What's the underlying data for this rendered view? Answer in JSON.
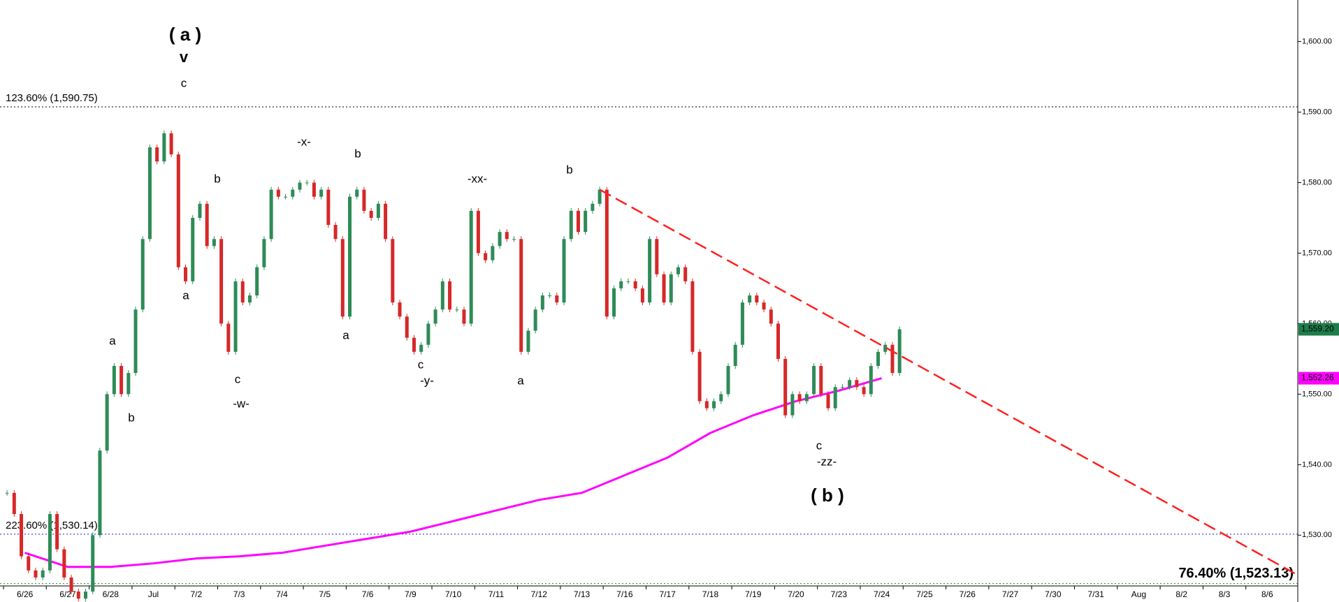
{
  "chart_data": {
    "type": "candlestick",
    "categories": [
      "6/26",
      "6/27",
      "6/28",
      "Jul",
      "7/2",
      "7/3",
      "7/4",
      "7/5",
      "7/6",
      "7/9",
      "7/10",
      "7/11",
      "7/12",
      "7/13",
      "7/16",
      "7/17",
      "7/18",
      "7/19",
      "7/20",
      "7/23",
      "7/24",
      "7/25",
      "7/26",
      "7/27",
      "7/30",
      "7/31",
      "Aug",
      "8/2",
      "8/3",
      "8/6"
    ],
    "ylim": [
      1522.8,
      1605.9
    ],
    "yticks": [
      {
        "value": 1530,
        "label": "1,530.00"
      },
      {
        "value": 1540,
        "label": "1,540.00"
      },
      {
        "value": 1550,
        "label": "1,550.00"
      },
      {
        "value": 1560,
        "label": "1,560.00"
      },
      {
        "value": 1570,
        "label": "1,570.00"
      },
      {
        "value": 1580,
        "label": "1,580.00"
      },
      {
        "value": 1590,
        "label": "1,590.00"
      },
      {
        "value": 1600,
        "label": "1,600.00"
      }
    ],
    "series": [
      {
        "name": "Price",
        "up_color": "#2e8b57",
        "down_color": "#d62828",
        "color": "#1e7d4a",
        "last_value_label": "1,559.20",
        "values": [
          [
            1536,
            1533,
            1527,
            1525,
            1524,
            1525
          ],
          [
            1533,
            1528,
            1524,
            1522,
            1521,
            1522
          ],
          [
            1530,
            1542,
            1550,
            1554,
            1550,
            1553
          ],
          [
            1562,
            1572,
            1585,
            1583,
            1587,
            1584
          ],
          [
            1568,
            1566,
            1575,
            1577,
            1571,
            1572
          ],
          [
            1560,
            1556,
            1566,
            1563,
            1564,
            1568
          ],
          [
            1572,
            1579,
            1578,
            1578,
            1579,
            1580
          ],
          [
            1580,
            1578,
            1579,
            1574,
            1572,
            1561
          ],
          [
            1578,
            1579,
            1576,
            1575,
            1577,
            1572
          ],
          [
            1563,
            1561,
            1558,
            1556,
            1557,
            1560
          ],
          [
            1562,
            1566,
            1562,
            1562,
            1560,
            1576
          ],
          [
            1570,
            1569,
            1571,
            1573,
            1572,
            1572
          ],
          [
            1556,
            1559,
            1562,
            1564,
            1564,
            1563
          ],
          [
            1572,
            1576,
            1573,
            1576,
            1577,
            1579
          ],
          [
            1561,
            1565,
            1566,
            1566,
            1565,
            1563
          ],
          [
            1572,
            1567,
            1563,
            1567,
            1568,
            1566
          ],
          [
            1556,
            1549,
            1548,
            1549,
            1550,
            1554
          ],
          [
            1557,
            1563,
            1564,
            1563,
            1562,
            1560
          ],
          [
            1555,
            1547,
            1550,
            1549,
            1550,
            1554
          ],
          [
            1550,
            1548,
            1551,
            1551,
            1552,
            1551
          ],
          [
            1550,
            1554,
            1556,
            1557,
            1553,
            1559.2
          ],
          null,
          null,
          null,
          null,
          null,
          null,
          null,
          null,
          null
        ]
      },
      {
        "name": "Moving Average",
        "color": "#ff00ff",
        "last_value_label": "1,552.26",
        "values": [
          1527.5,
          1525.5,
          1525.5,
          1526,
          1526.7,
          1527,
          1527.5,
          1528.5,
          1529.5,
          1530.5,
          1532,
          1533.5,
          1535,
          1536,
          1538.5,
          1541,
          1544.5,
          1547,
          1549,
          1550.5,
          1552.26,
          null,
          null,
          null,
          null,
          null,
          null,
          null,
          null,
          null
        ]
      }
    ],
    "trendline": {
      "color": "#ff2020",
      "start": 1579,
      "end": 1524.5
    },
    "levels": [
      {
        "label": "123.60% (1,590.75)",
        "value": 1590.75,
        "color": "#000000"
      },
      {
        "label": "223.60% (1,530.14)",
        "value": 1530.14,
        "color": "#1a1acc"
      },
      {
        "label": "76.40% (1,523.13)",
        "value": 1523.13,
        "color": "#1a8a1a"
      }
    ],
    "annotations": [
      {
        "text": "( a )",
        "color": "#8a2be2"
      },
      {
        "text": "v",
        "color": "#8a2be2"
      },
      {
        "text": "c",
        "color": "#000"
      },
      {
        "text": "b",
        "color": "#000"
      },
      {
        "text": "a",
        "color": "#000"
      },
      {
        "text": "a",
        "color": "#000"
      },
      {
        "text": "b",
        "color": "#000"
      },
      {
        "text": "c",
        "color": "#000"
      },
      {
        "text": "-w-",
        "color": "#000"
      },
      {
        "text": "-x-",
        "color": "#000"
      },
      {
        "text": "b",
        "color": "#000"
      },
      {
        "text": "a",
        "color": "#000"
      },
      {
        "text": "c",
        "color": "#000"
      },
      {
        "text": "-y-",
        "color": "#000"
      },
      {
        "text": "-xx-",
        "color": "#000"
      },
      {
        "text": "a",
        "color": "#000"
      },
      {
        "text": "b",
        "color": "#000"
      },
      {
        "text": "c",
        "color": "#000"
      },
      {
        "text": "-zz-",
        "color": "#000"
      },
      {
        "text": "( b )",
        "color": "#8a2be2"
      }
    ]
  }
}
